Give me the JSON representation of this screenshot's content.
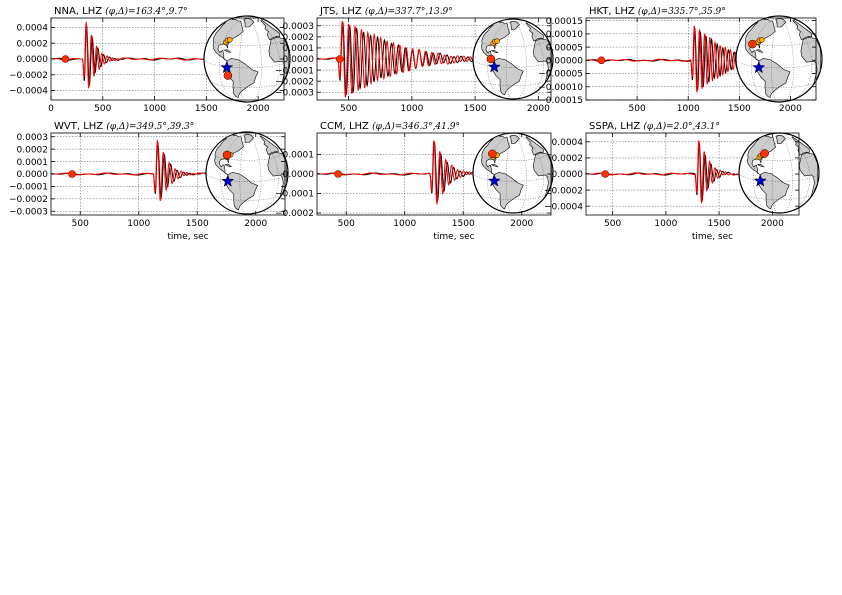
{
  "figure": {
    "colors": {
      "observed": "#000000",
      "synthetic": "#ff0000",
      "station_marker": "#ff3300",
      "event_star": "#0000cc",
      "land": "#cccccc",
      "other_stations": "#ffaa00"
    },
    "xlabel": "time, sec",
    "globe_icon": "globe-map-icon"
  },
  "chart_data": [
    {
      "type": "line",
      "station": "NNA",
      "title_text": "NNA, LHZ",
      "title_math": "(φ,Δ)=163.4°,9.7°",
      "xlim": [
        0,
        2250
      ],
      "ylim": [
        -0.00052,
        0.00052
      ],
      "xticks": [
        0,
        500,
        1000,
        1500,
        2000
      ],
      "xtick_labels": [
        "0",
        "500",
        "1000",
        "1500",
        "2000"
      ],
      "yticks": [
        0.0004,
        0.0002,
        0.0,
        -0.0002,
        -0.0004
      ],
      "ytick_labels": [
        "0.0004",
        "0.0002",
        "0.0000",
        "−0.0002",
        "−0.0004"
      ],
      "xlabel": "",
      "arrival_time": 330,
      "amplitude": 0.00048,
      "duration": 300,
      "marker_time": 140,
      "station_lonlat": [
        -77,
        -12
      ],
      "series": [
        {
          "name": "",
          "x": [
            0,
            140,
            300,
            330,
            360,
            400,
            700,
            1500
          ],
          "y": [
            0,
            0,
            0.0001,
            -0.00048,
            0.00045,
            -0.0002,
            2e-05,
            0
          ]
        }
      ]
    },
    {
      "type": "line",
      "station": "JTS",
      "title_text": "JTS, LHZ",
      "title_math": "(φ,Δ)=337.7°,13.9°",
      "xlim": [
        250,
        2100
      ],
      "ylim": [
        -0.00037,
        0.00037
      ],
      "xticks": [
        500,
        1000,
        1500,
        2000
      ],
      "xtick_labels": [
        "500",
        "1000",
        "1500",
        "2000"
      ],
      "yticks": [
        0.0003,
        0.0002,
        0.0001,
        0.0,
        -0.0001,
        -0.0002,
        -0.0003
      ],
      "ytick_labels": [
        "0.0003",
        "0.0002",
        "0.0001",
        "0.0000",
        "−0.0001",
        "−0.0002",
        "−0.0003"
      ],
      "xlabel": "",
      "arrival_time": 440,
      "amplitude": 0.00035,
      "duration": 1300,
      "marker_time": 430,
      "station_lonlat": [
        -84,
        10
      ],
      "series": [
        {
          "name": "",
          "x": [
            250,
            430,
            440,
            470,
            520,
            800,
            1500,
            2100
          ],
          "y": [
            0,
            0,
            0.00035,
            -0.0002,
            0.0003,
            5e-05,
            2e-05,
            0
          ]
        }
      ]
    },
    {
      "type": "line",
      "station": "HKT",
      "title_text": "HKT, LHZ",
      "title_math": "(φ,Δ)=335.7°,35.9°",
      "xlim": [
        0,
        2250
      ],
      "ylim": [
        -0.00015,
        0.00016
      ],
      "xticks": [
        500,
        1000,
        1500,
        2000
      ],
      "xtick_labels": [
        "500",
        "1000",
        "1500",
        "2000"
      ],
      "yticks": [
        0.00015,
        0.0001,
        5e-05,
        0.0,
        -5e-05,
        -0.0001,
        -0.00015
      ],
      "ytick_labels": [
        "0.00015",
        "0.00010",
        "0.00005",
        "0.00000",
        "−0.00005",
        "−0.00010",
        "−0.00015"
      ],
      "xlabel": "",
      "arrival_time": 1050,
      "amplitude": 0.00013,
      "duration": 900,
      "marker_time": 150,
      "station_lonlat": [
        -95,
        29
      ],
      "series": [
        {
          "name": "",
          "x": [
            0,
            150,
            1000,
            1050,
            1150,
            1500,
            2250
          ],
          "y": [
            0,
            1e-05,
            5e-05,
            0.00013,
            -0.00012,
            -3e-05,
            3e-05
          ]
        }
      ]
    },
    {
      "type": "line",
      "station": "WVT",
      "title_text": "WVT, LHZ",
      "title_math": "(φ,Δ)=349.5°,39.3°",
      "xlim": [
        250,
        2250
      ],
      "ylim": [
        -0.00033,
        0.00033
      ],
      "xticks": [
        500,
        1000,
        1500,
        2000
      ],
      "xtick_labels": [
        "500",
        "1000",
        "1500",
        "2000"
      ],
      "yticks": [
        0.0003,
        0.0002,
        0.0001,
        0.0,
        -0.0001,
        -0.0002,
        -0.0003
      ],
      "ytick_labels": [
        "0.0003",
        "0.0002",
        "0.0001",
        "0.0000",
        "−0.0001",
        "−0.0002",
        "−0.0003"
      ],
      "xlabel": "time, sec",
      "arrival_time": 1150,
      "amplitude": 0.00028,
      "duration": 300,
      "marker_time": 430,
      "station_lonlat": [
        -87,
        36
      ],
      "series": [
        {
          "name": "",
          "x": [
            250,
            430,
            1100,
            1150,
            1200,
            1300,
            1750
          ],
          "y": [
            0,
            0,
            3e-05,
            0.00028,
            -0.00027,
            3e-05,
            0
          ]
        }
      ]
    },
    {
      "type": "line",
      "station": "CCM",
      "title_text": "CCM, LHZ",
      "title_math": "(φ,Δ)=346.3°,41.9°",
      "xlim": [
        250,
        2250
      ],
      "ylim": [
        -0.00021,
        0.00021
      ],
      "xticks": [
        500,
        1000,
        1500,
        2000
      ],
      "xtick_labels": [
        "500",
        "1000",
        "1500",
        "2000"
      ],
      "yticks": [
        0.0001,
        0.0,
        -0.0001,
        -0.0002
      ],
      "ytick_labels": [
        "0.0001",
        "0.0000",
        "−0.0001",
        "−0.0002"
      ],
      "xlabel": "time, sec",
      "arrival_time": 1240,
      "amplitude": 0.00018,
      "duration": 350,
      "marker_time": 430,
      "station_lonlat": [
        -91,
        38
      ],
      "series": [
        {
          "name": "",
          "x": [
            250,
            430,
            1000,
            1240,
            1260,
            1300,
            1750
          ],
          "y": [
            0,
            0,
            3e-05,
            0.00018,
            -0.00019,
            4e-05,
            0
          ]
        }
      ]
    },
    {
      "type": "line",
      "station": "SSPA",
      "title_text": "SSPA, LHZ",
      "title_math": "(φ,Δ)=2.0°,43.1°",
      "xlim": [
        250,
        2250
      ],
      "ylim": [
        -0.00051,
        0.00051
      ],
      "xticks": [
        500,
        1000,
        1500,
        2000
      ],
      "xtick_labels": [
        "500",
        "1000",
        "1500",
        "2000"
      ],
      "yticks": [
        0.0004,
        0.0002,
        0.0,
        -0.0002,
        -0.0004
      ],
      "ytick_labels": [
        "0.0004",
        "0.0002",
        "0.0000",
        "−0.0002",
        "−0.0004"
      ],
      "xlabel": "time, sec",
      "arrival_time": 1300,
      "amplitude": 0.00045,
      "duration": 300,
      "marker_time": 430,
      "station_lonlat": [
        -78,
        40
      ],
      "series": [
        {
          "name": "",
          "x": [
            250,
            430,
            1100,
            1300,
            1340,
            1400,
            1750
          ],
          "y": [
            0,
            0,
            2e-05,
            0.00045,
            -0.00043,
            2e-05,
            0
          ]
        }
      ]
    }
  ]
}
